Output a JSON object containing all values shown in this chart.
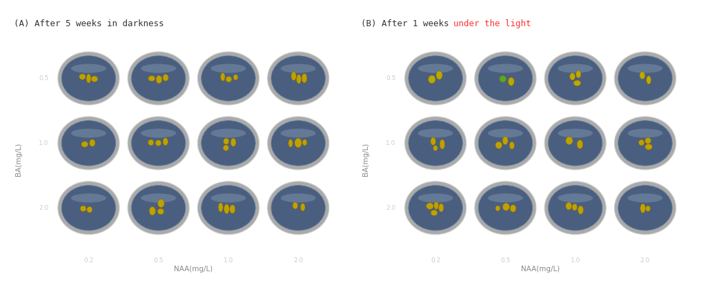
{
  "panel_A_title": "(A) After 5 weeks in darkness",
  "panel_B_title": "(B) After 1 weeks under the light",
  "title_color": "#333333",
  "title_B_highlight": "under the light",
  "title_B_highlight_color": "#ff3333",
  "background_color": "#000000",
  "outer_bg_color": "#ffffff",
  "ylabel": "BA(mg/L)",
  "xlabel": "NAA(mg/L)",
  "ba_labels": [
    "0.5",
    "1.0",
    "2.0"
  ],
  "naa_labels": [
    "0.2",
    "0.5",
    "1.0",
    "2.0"
  ],
  "label_color": "#cccccc",
  "axis_label_color": "#888888",
  "figsize": [
    10.26,
    4.13
  ],
  "dpi": 100
}
